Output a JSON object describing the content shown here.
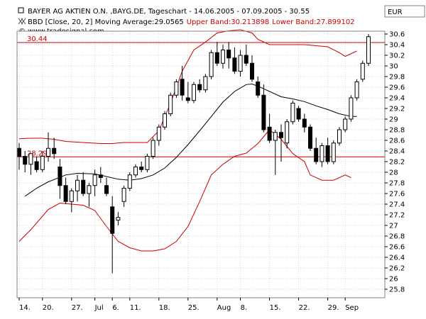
{
  "header": {
    "title_line": "BAYER AG AKTIEN O.N. ,BAYG.DE, Tageschart - 14.06.2005 - 07.09.2005 - 30.55",
    "indicator_prefix": "BBD [Close, 20, 2] Moving Average:29.0565",
    "indicator_upper": "Upper Band:30.213898",
    "indicator_lower": "Lower Band:27.899102",
    "copyright": "© www.tradesignal.com",
    "currency": "EUR"
  },
  "colors": {
    "band": "#cc0000",
    "moving_average": "#000000",
    "reference_line": "#cc0000",
    "grid": "#c8c8c8",
    "candle": "#000000",
    "plot_background": "#ffffff"
  },
  "chart_data": {
    "type": "candlestick",
    "instrument": "BAYER AG AKTIEN O.N.",
    "symbol": "BAYG.DE",
    "period": "Tageschart",
    "date_range": [
      "14.06.2005",
      "07.09.2005"
    ],
    "last_price": 30.55,
    "currency": "EUR",
    "ylim": [
      25.8,
      30.8
    ],
    "y_ticks": [
      30.6,
      30.4,
      30.2,
      30,
      29.8,
      29.6,
      29.4,
      29.2,
      29,
      28.8,
      28.6,
      28.4,
      28.2,
      28,
      27.8,
      27.6,
      27.4,
      27.2,
      27,
      26.8,
      26.6,
      26.4,
      26.2,
      26,
      25.8
    ],
    "x_ticks": [
      {
        "label": "14.",
        "bar": 0
      },
      {
        "label": "20.",
        "bar": 4
      },
      {
        "label": "27.",
        "bar": 9
      },
      {
        "label": "Jul",
        "bar": 13
      },
      {
        "label": "6.",
        "bar": 16
      },
      {
        "label": "11.",
        "bar": 19
      },
      {
        "label": "18.",
        "bar": 24
      },
      {
        "label": "25.",
        "bar": 29
      },
      {
        "label": "Aug",
        "bar": 34
      },
      {
        "label": "8.",
        "bar": 38
      },
      {
        "label": "15.",
        "bar": 43
      },
      {
        "label": "22.",
        "bar": 48
      },
      {
        "label": "29.",
        "bar": 53
      },
      {
        "label": "Sep",
        "bar": 56
      }
    ],
    "reference_lines": [
      {
        "label": "30.44",
        "value": 30.44
      },
      {
        "label": "28.29",
        "value": 28.29
      }
    ],
    "candles": [
      {
        "o": 28.45,
        "h": 28.55,
        "l": 28.05,
        "c": 28.3
      },
      {
        "o": 28.3,
        "h": 28.4,
        "l": 28.0,
        "c": 28.15
      },
      {
        "o": 28.15,
        "h": 28.35,
        "l": 27.95,
        "c": 28.35
      },
      {
        "o": 28.2,
        "h": 28.3,
        "l": 28.0,
        "c": 28.05
      },
      {
        "o": 28.05,
        "h": 28.4,
        "l": 28.0,
        "c": 28.3
      },
      {
        "o": 28.3,
        "h": 28.75,
        "l": 28.2,
        "c": 28.45
      },
      {
        "o": 28.45,
        "h": 28.65,
        "l": 28.25,
        "c": 28.35
      },
      {
        "o": 28.1,
        "h": 28.25,
        "l": 27.5,
        "c": 27.75
      },
      {
        "o": 27.75,
        "h": 27.9,
        "l": 27.4,
        "c": 27.45
      },
      {
        "o": 27.45,
        "h": 27.7,
        "l": 27.25,
        "c": 27.65
      },
      {
        "o": 27.65,
        "h": 27.95,
        "l": 27.45,
        "c": 27.85
      },
      {
        "o": 27.85,
        "h": 28.0,
        "l": 27.55,
        "c": 27.6
      },
      {
        "o": 27.6,
        "h": 27.8,
        "l": 27.35,
        "c": 27.75
      },
      {
        "o": 27.75,
        "h": 28.05,
        "l": 27.55,
        "c": 27.95
      },
      {
        "o": 27.95,
        "h": 28.1,
        "l": 27.8,
        "c": 27.9
      },
      {
        "o": 27.75,
        "h": 27.9,
        "l": 27.55,
        "c": 27.6
      },
      {
        "o": 27.35,
        "h": 27.55,
        "l": 26.1,
        "c": 26.85
      },
      {
        "o": 27.1,
        "h": 27.25,
        "l": 27.0,
        "c": 27.15
      },
      {
        "o": 27.45,
        "h": 27.75,
        "l": 27.35,
        "c": 27.7
      },
      {
        "o": 27.7,
        "h": 28.0,
        "l": 27.65,
        "c": 27.95
      },
      {
        "o": 27.95,
        "h": 28.15,
        "l": 27.9,
        "c": 28.1
      },
      {
        "o": 28.1,
        "h": 28.2,
        "l": 28.0,
        "c": 28.05
      },
      {
        "o": 28.05,
        "h": 28.35,
        "l": 28.0,
        "c": 28.3
      },
      {
        "o": 28.3,
        "h": 28.65,
        "l": 28.25,
        "c": 28.6
      },
      {
        "o": 28.6,
        "h": 28.9,
        "l": 28.5,
        "c": 28.85
      },
      {
        "o": 28.85,
        "h": 29.15,
        "l": 28.8,
        "c": 29.1
      },
      {
        "o": 29.1,
        "h": 29.5,
        "l": 29.05,
        "c": 29.45
      },
      {
        "o": 29.45,
        "h": 29.75,
        "l": 29.4,
        "c": 29.7
      },
      {
        "o": 29.75,
        "h": 30.0,
        "l": 29.35,
        "c": 29.45
      },
      {
        "o": 29.4,
        "h": 29.7,
        "l": 29.3,
        "c": 29.35
      },
      {
        "o": 29.35,
        "h": 29.7,
        "l": 29.3,
        "c": 29.65
      },
      {
        "o": 29.65,
        "h": 29.75,
        "l": 29.5,
        "c": 29.55
      },
      {
        "o": 29.55,
        "h": 29.85,
        "l": 29.5,
        "c": 29.8
      },
      {
        "o": 29.8,
        "h": 30.3,
        "l": 29.75,
        "c": 30.25
      },
      {
        "o": 30.25,
        "h": 30.45,
        "l": 30.0,
        "c": 30.05
      },
      {
        "o": 30.05,
        "h": 30.4,
        "l": 29.95,
        "c": 30.3
      },
      {
        "o": 30.3,
        "h": 30.45,
        "l": 29.95,
        "c": 30.15
      },
      {
        "o": 30.15,
        "h": 30.35,
        "l": 29.85,
        "c": 29.9
      },
      {
        "o": 29.9,
        "h": 30.3,
        "l": 29.8,
        "c": 30.2
      },
      {
        "o": 30.2,
        "h": 30.4,
        "l": 30.0,
        "c": 30.05
      },
      {
        "o": 30.05,
        "h": 30.2,
        "l": 29.7,
        "c": 29.75
      },
      {
        "o": 29.7,
        "h": 29.8,
        "l": 29.4,
        "c": 29.45
      },
      {
        "o": 29.45,
        "h": 29.65,
        "l": 28.75,
        "c": 28.8
      },
      {
        "o": 28.85,
        "h": 29.1,
        "l": 28.55,
        "c": 28.6
      },
      {
        "o": 28.6,
        "h": 28.8,
        "l": 27.95,
        "c": 28.75
      },
      {
        "o": 28.75,
        "h": 28.9,
        "l": 28.2,
        "c": 28.65
      },
      {
        "o": 28.55,
        "h": 29.0,
        "l": 28.45,
        "c": 28.95
      },
      {
        "o": 28.95,
        "h": 29.35,
        "l": 28.9,
        "c": 29.3
      },
      {
        "o": 29.2,
        "h": 29.25,
        "l": 28.95,
        "c": 29.0
      },
      {
        "o": 29.0,
        "h": 29.1,
        "l": 28.75,
        "c": 28.85
      },
      {
        "o": 28.85,
        "h": 28.9,
        "l": 28.4,
        "c": 28.45
      },
      {
        "o": 28.45,
        "h": 28.65,
        "l": 28.15,
        "c": 28.2
      },
      {
        "o": 28.2,
        "h": 28.55,
        "l": 28.1,
        "c": 28.5
      },
      {
        "o": 28.5,
        "h": 28.65,
        "l": 28.15,
        "c": 28.2
      },
      {
        "o": 28.2,
        "h": 28.6,
        "l": 28.15,
        "c": 28.55
      },
      {
        "o": 28.55,
        "h": 28.85,
        "l": 28.5,
        "c": 28.8
      },
      {
        "o": 28.8,
        "h": 29.05,
        "l": 28.75,
        "c": 29.0
      },
      {
        "o": 29.0,
        "h": 29.45,
        "l": 28.95,
        "c": 29.4
      },
      {
        "o": 29.4,
        "h": 29.75,
        "l": 29.35,
        "c": 29.7
      },
      {
        "o": 29.75,
        "h": 30.1,
        "l": 29.7,
        "c": 30.05
      },
      {
        "o": 30.05,
        "h": 30.6,
        "l": 30.0,
        "c": 30.55
      }
    ],
    "moving_average": [
      [
        1,
        27.55
      ],
      [
        3,
        27.7
      ],
      [
        5,
        27.82
      ],
      [
        8,
        27.95
      ],
      [
        10,
        27.98
      ],
      [
        13,
        27.97
      ],
      [
        15,
        27.92
      ],
      [
        17,
        27.87
      ],
      [
        19,
        27.85
      ],
      [
        21,
        27.88
      ],
      [
        23,
        27.95
      ],
      [
        25,
        28.08
      ],
      [
        27,
        28.28
      ],
      [
        29,
        28.52
      ],
      [
        31,
        28.78
      ],
      [
        33,
        29.05
      ],
      [
        35,
        29.32
      ],
      [
        37,
        29.52
      ],
      [
        39,
        29.65
      ],
      [
        40,
        29.66
      ],
      [
        41,
        29.62
      ],
      [
        43,
        29.52
      ],
      [
        45,
        29.42
      ],
      [
        47,
        29.38
      ],
      [
        49,
        29.33
      ],
      [
        51,
        29.25
      ],
      [
        53,
        29.18
      ],
      [
        55,
        29.1
      ],
      [
        57,
        29.05
      ],
      [
        58,
        29.05
      ]
    ],
    "upper_band": [
      [
        0,
        28.63
      ],
      [
        2,
        28.64
      ],
      [
        4,
        28.64
      ],
      [
        6,
        28.62
      ],
      [
        8,
        28.58
      ],
      [
        11,
        28.56
      ],
      [
        14,
        28.54
      ],
      [
        16,
        28.54
      ],
      [
        18,
        28.56
      ],
      [
        20,
        28.56
      ],
      [
        22,
        28.56
      ],
      [
        24,
        28.78
      ],
      [
        26,
        29.3
      ],
      [
        28,
        29.9
      ],
      [
        30,
        30.3
      ],
      [
        32,
        30.45
      ],
      [
        34,
        30.62
      ],
      [
        36,
        30.66
      ],
      [
        38,
        30.68
      ],
      [
        40,
        30.62
      ],
      [
        41,
        30.5
      ],
      [
        43,
        30.4
      ],
      [
        45,
        30.4
      ],
      [
        47,
        30.4
      ],
      [
        49,
        30.4
      ],
      [
        51,
        30.38
      ],
      [
        53,
        30.36
      ],
      [
        55,
        30.25
      ],
      [
        56,
        30.18
      ],
      [
        58,
        30.28
      ]
    ],
    "lower_band": [
      [
        0,
        26.7
      ],
      [
        2,
        26.92
      ],
      [
        5,
        27.3
      ],
      [
        7,
        27.42
      ],
      [
        9,
        27.4
      ],
      [
        11,
        27.38
      ],
      [
        13,
        27.28
      ],
      [
        15,
        26.98
      ],
      [
        17,
        26.7
      ],
      [
        19,
        26.58
      ],
      [
        21,
        26.52
      ],
      [
        23,
        26.52
      ],
      [
        25,
        26.56
      ],
      [
        27,
        26.7
      ],
      [
        29,
        26.98
      ],
      [
        31,
        27.45
      ],
      [
        33,
        27.95
      ],
      [
        35,
        28.15
      ],
      [
        37,
        28.3
      ],
      [
        39,
        28.36
      ],
      [
        41,
        28.54
      ],
      [
        43,
        28.8
      ],
      [
        45,
        28.62
      ],
      [
        47,
        28.35
      ],
      [
        49,
        28.2
      ],
      [
        50,
        27.95
      ],
      [
        52,
        27.85
      ],
      [
        54,
        27.85
      ],
      [
        56,
        27.95
      ],
      [
        57,
        27.9
      ]
    ]
  }
}
